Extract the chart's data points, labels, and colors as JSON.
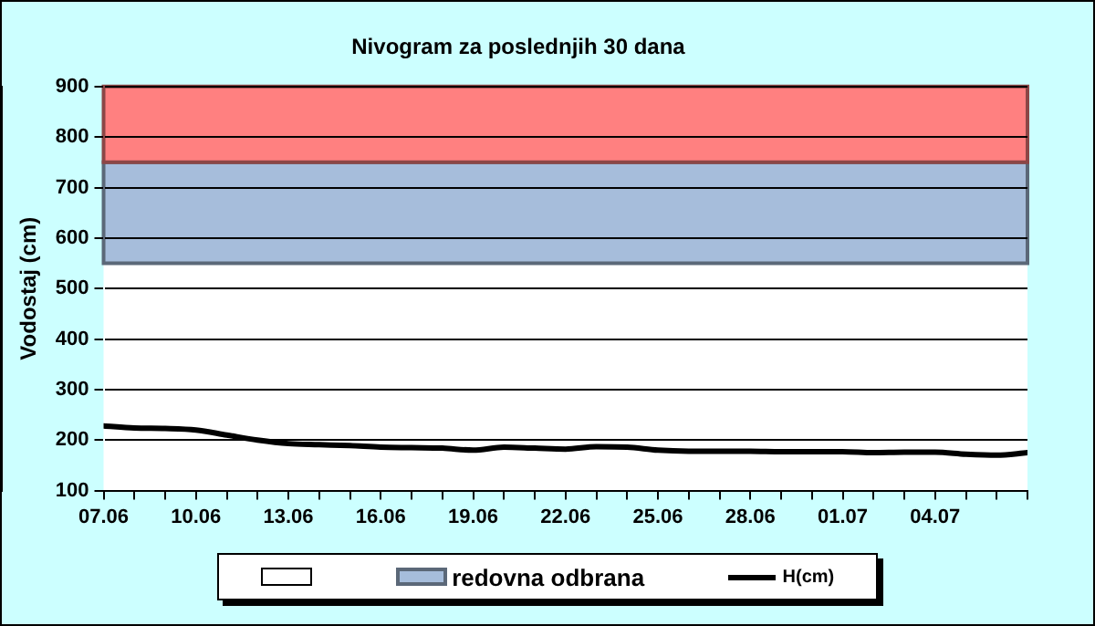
{
  "chart_data": {
    "type": "line",
    "title": "Nivogram za poslednjih 30 dana",
    "ylabel": "Vodostaj (cm)",
    "x": [
      "--06-07",
      "--06-08",
      "--06-09",
      "--06-10",
      "--06-11",
      "--06-12",
      "--06-13",
      "--06-14",
      "--06-15",
      "--06-16",
      "--06-17",
      "--06-18",
      "--06-19",
      "--06-20",
      "--06-21",
      "--06-22",
      "--06-23",
      "--06-24",
      "--06-25",
      "--06-26",
      "--06-27",
      "--06-28",
      "--06-29",
      "--06-30",
      "--07-01",
      "--07-02",
      "--07-03",
      "--07-04",
      "--07-05",
      "--07-06",
      "--07-07"
    ],
    "series": [
      {
        "name": "H(cm)",
        "color": "#000000",
        "values": [
          228,
          224,
          223,
          220,
          210,
          200,
          193,
          191,
          189,
          186,
          185,
          184,
          180,
          186,
          184,
          182,
          187,
          186,
          180,
          178,
          178,
          178,
          177,
          177,
          177,
          175,
          176,
          176,
          172,
          170,
          175
        ]
      }
    ],
    "xlim": [
      "--06-07",
      "--07-07"
    ],
    "xticks": [
      {
        "value": "--06-07",
        "label": "07.06"
      },
      {
        "value": "--06-08",
        "label": null
      },
      {
        "value": "--06-09",
        "label": null
      },
      {
        "value": "--06-10",
        "label": "10.06"
      },
      {
        "value": "--06-11",
        "label": null
      },
      {
        "value": "--06-12",
        "label": null
      },
      {
        "value": "--06-13",
        "label": "13.06"
      },
      {
        "value": "--06-14",
        "label": null
      },
      {
        "value": "--06-15",
        "label": null
      },
      {
        "value": "--06-16",
        "label": "16.06"
      },
      {
        "value": "--06-17",
        "label": null
      },
      {
        "value": "--06-18",
        "label": null
      },
      {
        "value": "--06-19",
        "label": "19.06"
      },
      {
        "value": "--06-20",
        "label": null
      },
      {
        "value": "--06-21",
        "label": null
      },
      {
        "value": "--06-22",
        "label": "22.06"
      },
      {
        "value": "--06-23",
        "label": null
      },
      {
        "value": "--06-24",
        "label": null
      },
      {
        "value": "--06-25",
        "label": "25.06"
      },
      {
        "value": "--06-26",
        "label": null
      },
      {
        "value": "--06-27",
        "label": null
      },
      {
        "value": "--06-28",
        "label": "28.06"
      },
      {
        "value": "--06-29",
        "label": null
      },
      {
        "value": "--06-30",
        "label": null
      },
      {
        "value": "--07-01",
        "label": "01.07"
      },
      {
        "value": "--07-02",
        "label": null
      },
      {
        "value": "--07-03",
        "label": null
      },
      {
        "value": "--07-04",
        "label": "04.07"
      },
      {
        "value": "--07-05",
        "label": null
      },
      {
        "value": "--07-06",
        "label": null
      },
      {
        "value": "--07-07",
        "label": null
      }
    ],
    "ylim": [
      100,
      900
    ],
    "yticks": [
      100,
      200,
      300,
      400,
      500,
      600,
      700,
      800,
      900
    ],
    "bands": [
      {
        "axis": "y",
        "from": 550,
        "to": 750,
        "label": "redovna odbrana",
        "color": "#a6bddb"
      },
      {
        "axis": "y",
        "from": 750,
        "to": 900,
        "color": "#ff8080"
      }
    ],
    "grid": "y",
    "legend": "bottom",
    "marker": "none",
    "line_style": "solid"
  }
}
